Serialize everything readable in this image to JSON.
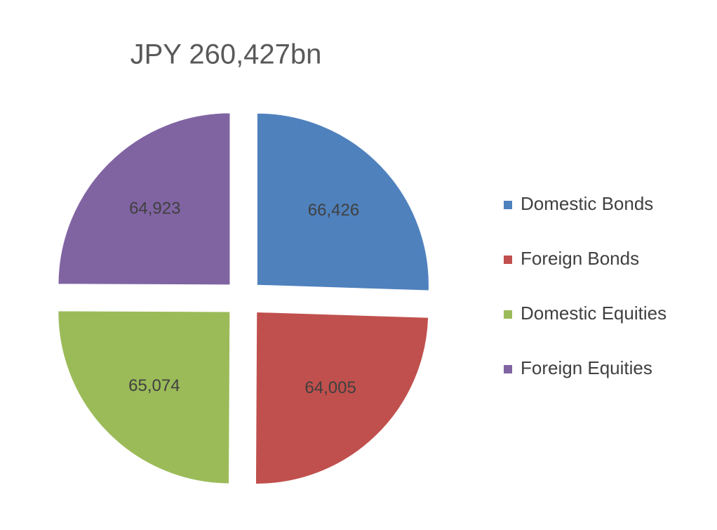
{
  "chart_data": {
    "type": "pie",
    "title": "JPY 260,427bn",
    "categories": [
      "Domestic Bonds",
      "Foreign Bonds",
      "Domestic Equities",
      "Foreign Equities"
    ],
    "values": [
      66426,
      64005,
      65074,
      64923
    ],
    "value_labels": [
      "66,426",
      "64,005",
      "65,074",
      "64,923"
    ],
    "colors": [
      "#4f81bd",
      "#c0504d",
      "#9bbb59",
      "#8064a2"
    ],
    "legend": "right"
  }
}
